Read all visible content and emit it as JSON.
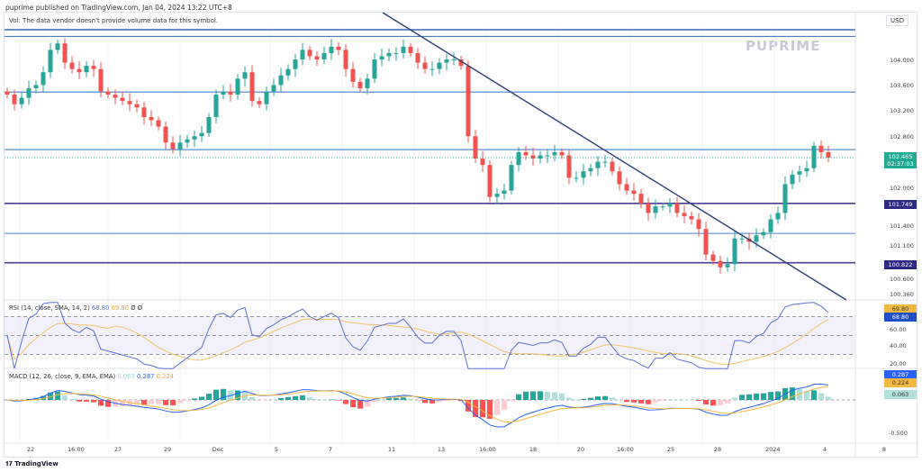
{
  "header": {
    "published": "puprime published on TradingView.com, Jan 04, 2024 13:22 UTC+8",
    "volume_note": "Vol: The data vendor doesn't provide volume data for this symbol.",
    "currency": "USD",
    "watermark": "PUPRIME",
    "footer_logo": "TradingView"
  },
  "price_axis": [
    "104.000",
    "103.600",
    "103.200",
    "102.800",
    "102.000",
    "101.400",
    "101.100",
    "100.600",
    "100.360"
  ],
  "price_tags": {
    "last": "102.465",
    "countdown": "02:37:03",
    "level1": "101.749",
    "level2": "100.822"
  },
  "rsi": {
    "title": "RSI (14, close, SMA, 14, 2)",
    "rsi_value": "68.80",
    "sma_value": "69.80",
    "extra": "Ø Ø",
    "axis": [
      "60.00",
      "40.00",
      "20.00"
    ]
  },
  "macd": {
    "title": "MACD (12, 26, close, 9, EMA, EMA)",
    "hist_value": "0.063",
    "macd_value": "0.287",
    "signal_value": "0.224",
    "axis": [
      "-0.500"
    ]
  },
  "time_axis": [
    "22",
    "16:00",
    "27",
    "29",
    "Dec",
    "5",
    "7",
    "11",
    "13",
    "16:00",
    "18",
    "20",
    "16:00",
    "25",
    "28",
    "2024",
    "4",
    "8"
  ],
  "colors": {
    "up": "#26a69a",
    "down": "#ef5350",
    "level": "#4a7fc1",
    "strong": "#4b3f8f",
    "trend": "#2d3e75",
    "rsi": "#5b6fd6",
    "sma": "#f0c36a"
  },
  "chart_data": {
    "type": "candlestick",
    "ylim": [
      100.3,
      104.6
    ],
    "levels": [
      104.36,
      103.49,
      102.59,
      101.749,
      101.28,
      100.822
    ],
    "closes": [
      103.45,
      103.3,
      103.4,
      103.55,
      103.6,
      103.8,
      104.15,
      104.25,
      103.95,
      103.85,
      103.8,
      103.9,
      103.85,
      103.5,
      103.45,
      103.4,
      103.35,
      103.3,
      103.25,
      103.1,
      103.05,
      102.95,
      102.7,
      102.6,
      102.7,
      102.75,
      102.8,
      102.85,
      103.1,
      103.45,
      103.5,
      103.45,
      103.7,
      103.8,
      103.35,
      103.3,
      103.5,
      103.6,
      103.75,
      103.85,
      104.0,
      104.15,
      104.05,
      104.0,
      104.1,
      104.2,
      104.15,
      103.85,
      103.65,
      103.55,
      103.7,
      104.0,
      104.05,
      104.1,
      104.1,
      104.2,
      104.1,
      103.95,
      103.85,
      103.85,
      103.95,
      104.0,
      104.0,
      103.9,
      102.8,
      102.45,
      102.35,
      101.85,
      101.9,
      101.95,
      102.35,
      102.55,
      102.5,
      102.45,
      102.5,
      102.5,
      102.55,
      102.5,
      102.15,
      102.15,
      102.25,
      102.3,
      102.4,
      102.4,
      102.25,
      102.05,
      101.95,
      101.9,
      101.75,
      101.6,
      101.7,
      101.7,
      101.75,
      101.6,
      101.55,
      101.5,
      101.35,
      100.95,
      100.85,
      100.75,
      100.8,
      101.2,
      101.2,
      101.15,
      101.25,
      101.3,
      101.5,
      101.6,
      102.05,
      102.2,
      102.25,
      102.3,
      102.65,
      102.55,
      102.465
    ]
  }
}
